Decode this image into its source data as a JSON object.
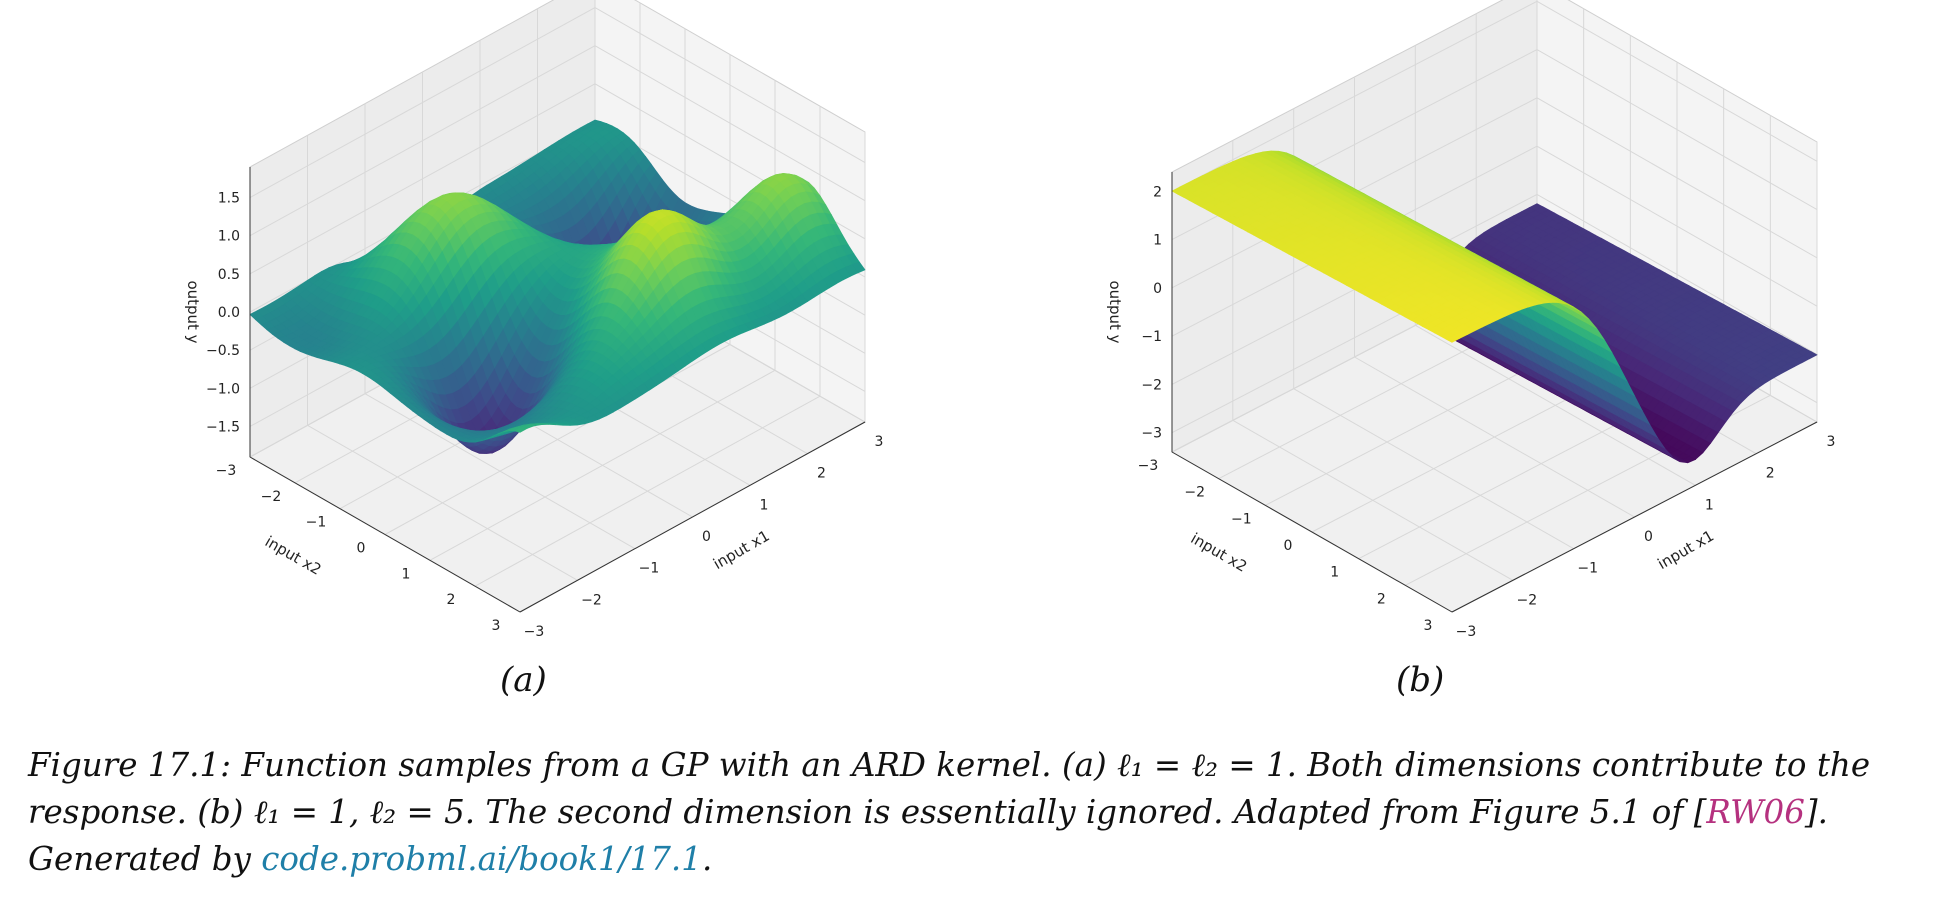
{
  "figure": {
    "panels": [
      {
        "label": "(a)"
      },
      {
        "label": "(b)"
      }
    ],
    "caption": {
      "prefix": "Figure 17.1: Function samples from a GP with an ARD kernel. (a) ℓ₁ = ℓ₂ = 1. Both dimensions contribute to the response. (b) ℓ₁ = 1, ℓ₂ = 5. The second dimension is essentially ignored. Adapted from Figure 5.1 of [",
      "citation": "RW06",
      "middle": "]. Generated by ",
      "link": "code.probml.ai/book1/17.1",
      "suffix": "."
    }
  },
  "chart_data": [
    {
      "type": "surface",
      "colormap": "viridis",
      "xlabel": "input x1",
      "ylabel": "input x2",
      "zlabel": "output y",
      "xticks": [
        "−3",
        "−2",
        "−1",
        "0",
        "1",
        "2",
        "3"
      ],
      "yticks": [
        "−3",
        "−2",
        "−1",
        "0",
        "1",
        "2",
        "3"
      ],
      "zticks": [
        "−1.5",
        "−1.0",
        "−0.5",
        "0.0",
        "0.5",
        "1.0",
        "1.5"
      ],
      "xlim": [
        -3,
        3
      ],
      "ylim": [
        -3,
        3
      ],
      "zlim": [
        -1.9,
        1.9
      ],
      "length_scales": [
        1,
        1
      ]
    },
    {
      "type": "surface",
      "colormap": "viridis",
      "xlabel": "input x1",
      "ylabel": "input x2",
      "zlabel": "output y",
      "xticks": [
        "−3",
        "−2",
        "−1",
        "0",
        "1",
        "2",
        "3"
      ],
      "yticks": [
        "−3",
        "−2",
        "−1",
        "0",
        "1",
        "2",
        "3"
      ],
      "zticks": [
        "−3",
        "−2",
        "−1",
        "0",
        "1",
        "2"
      ],
      "xlim": [
        -3,
        3
      ],
      "ylim": [
        -3,
        3
      ],
      "zlim": [
        -3.4,
        2.4
      ],
      "length_scales": [
        1,
        5
      ]
    }
  ]
}
